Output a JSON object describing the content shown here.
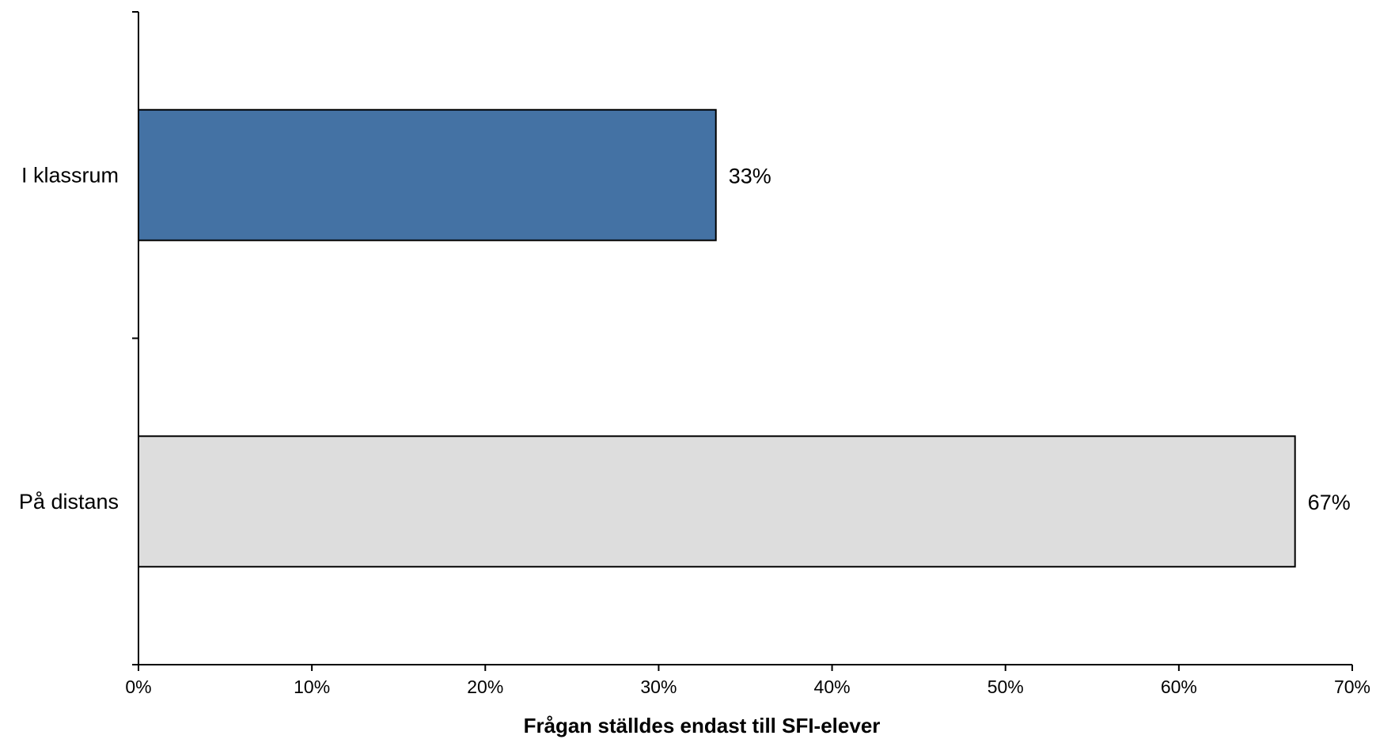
{
  "chart_data": {
    "type": "bar",
    "orientation": "horizontal",
    "categories": [
      "I klassrum",
      "På distans"
    ],
    "values": [
      33.3,
      66.7
    ],
    "data_labels": [
      "33%",
      "67%"
    ],
    "colors": [
      "#4472A4",
      "#DDDDDD"
    ],
    "title": "",
    "xlabel": "Frågan ställdes endast till SFI-elever",
    "ylabel": "",
    "xlim": [
      0,
      70
    ],
    "x_ticks": [
      0,
      10,
      20,
      30,
      40,
      50,
      60,
      70
    ],
    "x_tick_labels": [
      "0%",
      "10%",
      "20%",
      "30%",
      "40%",
      "50%",
      "60%",
      "70%"
    ],
    "grid": false,
    "legend": "none"
  }
}
